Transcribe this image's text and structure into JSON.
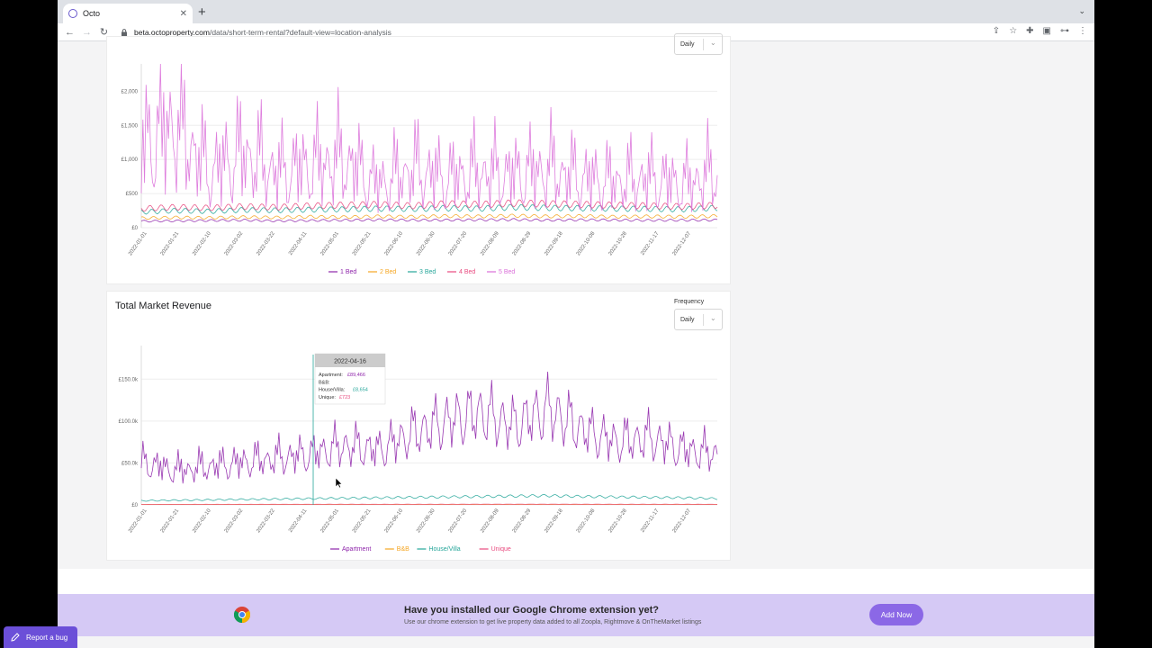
{
  "browser": {
    "tab_title": "Octo",
    "url_host": "beta.octoproperty.com",
    "url_path": "/data/short-term-rental?default-view=location-analysis"
  },
  "chart1": {
    "frequency_value": "Daily",
    "legend": [
      "1 Bed",
      "2 Bed",
      "3 Bed",
      "4 Bed",
      "5 Bed"
    ]
  },
  "chart2": {
    "title": "Total Market Revenue",
    "frequency_label": "Frequency",
    "frequency_value": "Daily",
    "legend": [
      "Apartment",
      "B&B",
      "House/Villa",
      "Unique"
    ],
    "tooltip": {
      "date": "2022-04-16",
      "apartment_label": "Apartment:",
      "apartment_value": "£89,466",
      "bnb_label": "B&B:",
      "house_label": "House/Villa:",
      "house_value": "£8,654",
      "unique_label": "Unique:",
      "unique_value": "£723"
    }
  },
  "banner": {
    "title": "Have you installed our Google Chrome extension yet?",
    "subtitle": "Use our chrome extension to get live property data added to all Zoopla, Rightmove & OnTheMarket listings",
    "button": "Add Now"
  },
  "report_bug": "Report a bug",
  "colors": {
    "purple": "#8e24aa",
    "orange": "#f5a623",
    "teal": "#26a69a",
    "pink": "#e84a7f",
    "magenta": "#da6fd9",
    "accent": "#8b68e6"
  },
  "chart_data": [
    {
      "type": "line",
      "xlabel": "",
      "ylabel": "",
      "y_ticks": [
        "£0",
        "£500",
        "£1,000",
        "£1,500",
        "£2,000"
      ],
      "ylim": [
        0,
        2400
      ],
      "x_ticks": [
        "2022-01-01",
        "2022-01-21",
        "2022-02-10",
        "2022-03-02",
        "2022-03-22",
        "2022-04-11",
        "2022-05-01",
        "2022-05-21",
        "2022-06-10",
        "2022-06-30",
        "2022-07-20",
        "2022-08-09",
        "2022-08-29",
        "2022-09-18",
        "2022-10-08",
        "2022-10-28",
        "2022-11-17",
        "2022-12-07"
      ],
      "series": [
        {
          "name": "1 Bed",
          "color": "#8e24aa",
          "values": [
            95,
            100,
            105,
            110,
            100,
            105,
            110,
            115,
            110,
            112,
            115,
            118,
            110,
            115,
            112,
            108,
            110,
            112
          ]
        },
        {
          "name": "2 Bed",
          "color": "#f5a623",
          "values": [
            140,
            150,
            145,
            155,
            150,
            160,
            155,
            165,
            160,
            170,
            165,
            175,
            165,
            170,
            160,
            165,
            160,
            170
          ]
        },
        {
          "name": "3 Bed",
          "color": "#26a69a",
          "values": [
            230,
            250,
            240,
            260,
            255,
            265,
            270,
            280,
            275,
            285,
            280,
            300,
            290,
            285,
            280,
            275,
            270,
            290
          ]
        },
        {
          "name": "4 Bed",
          "color": "#e84a7f",
          "values": [
            280,
            300,
            290,
            310,
            300,
            320,
            330,
            340,
            320,
            350,
            340,
            360,
            350,
            340,
            330,
            320,
            310,
            330
          ]
        },
        {
          "name": "5 Bed",
          "color": "#da6fd9",
          "values": [
            1300,
            1700,
            900,
            1200,
            900,
            1000,
            1100,
            700,
            950,
            800,
            900,
            850,
            950,
            800,
            750,
            800,
            700,
            900
          ]
        }
      ]
    },
    {
      "type": "line",
      "title": "Total Market Revenue",
      "xlabel": "",
      "ylabel": "",
      "y_ticks": [
        "£0",
        "£50.0k",
        "£100.0k",
        "£150.0k"
      ],
      "ylim": [
        0,
        190000
      ],
      "x_ticks": [
        "2022-01-01",
        "2022-01-21",
        "2022-02-10",
        "2022-03-02",
        "2022-03-22",
        "2022-04-11",
        "2022-05-01",
        "2022-05-21",
        "2022-06-10",
        "2022-06-30",
        "2022-07-20",
        "2022-08-09",
        "2022-08-29",
        "2022-09-18",
        "2022-10-08",
        "2022-10-28",
        "2022-11-17",
        "2022-12-07"
      ],
      "series": [
        {
          "name": "Apartment",
          "color": "#8e24aa",
          "values": [
            45000,
            35000,
            40000,
            45000,
            50000,
            55000,
            65000,
            60000,
            80000,
            95000,
            105000,
            90000,
            110000,
            85000,
            70000,
            75000,
            60000,
            55000
          ]
        },
        {
          "name": "B&B",
          "color": "#f5a623",
          "values": [
            500,
            500,
            500,
            500,
            500,
            500,
            500,
            500,
            500,
            500,
            500,
            500,
            500,
            500,
            500,
            500,
            500,
            500
          ]
        },
        {
          "name": "House/Villa",
          "color": "#26a69a",
          "values": [
            5000,
            5500,
            6000,
            6500,
            7000,
            7500,
            8000,
            8500,
            9000,
            9500,
            10000,
            10500,
            11000,
            10000,
            9500,
            9000,
            8500,
            7500
          ]
        },
        {
          "name": "Unique",
          "color": "#e84a7f",
          "values": [
            600,
            600,
            650,
            650,
            700,
            700,
            723,
            700,
            750,
            750,
            800,
            800,
            800,
            780,
            760,
            740,
            720,
            700
          ]
        }
      ]
    }
  ]
}
